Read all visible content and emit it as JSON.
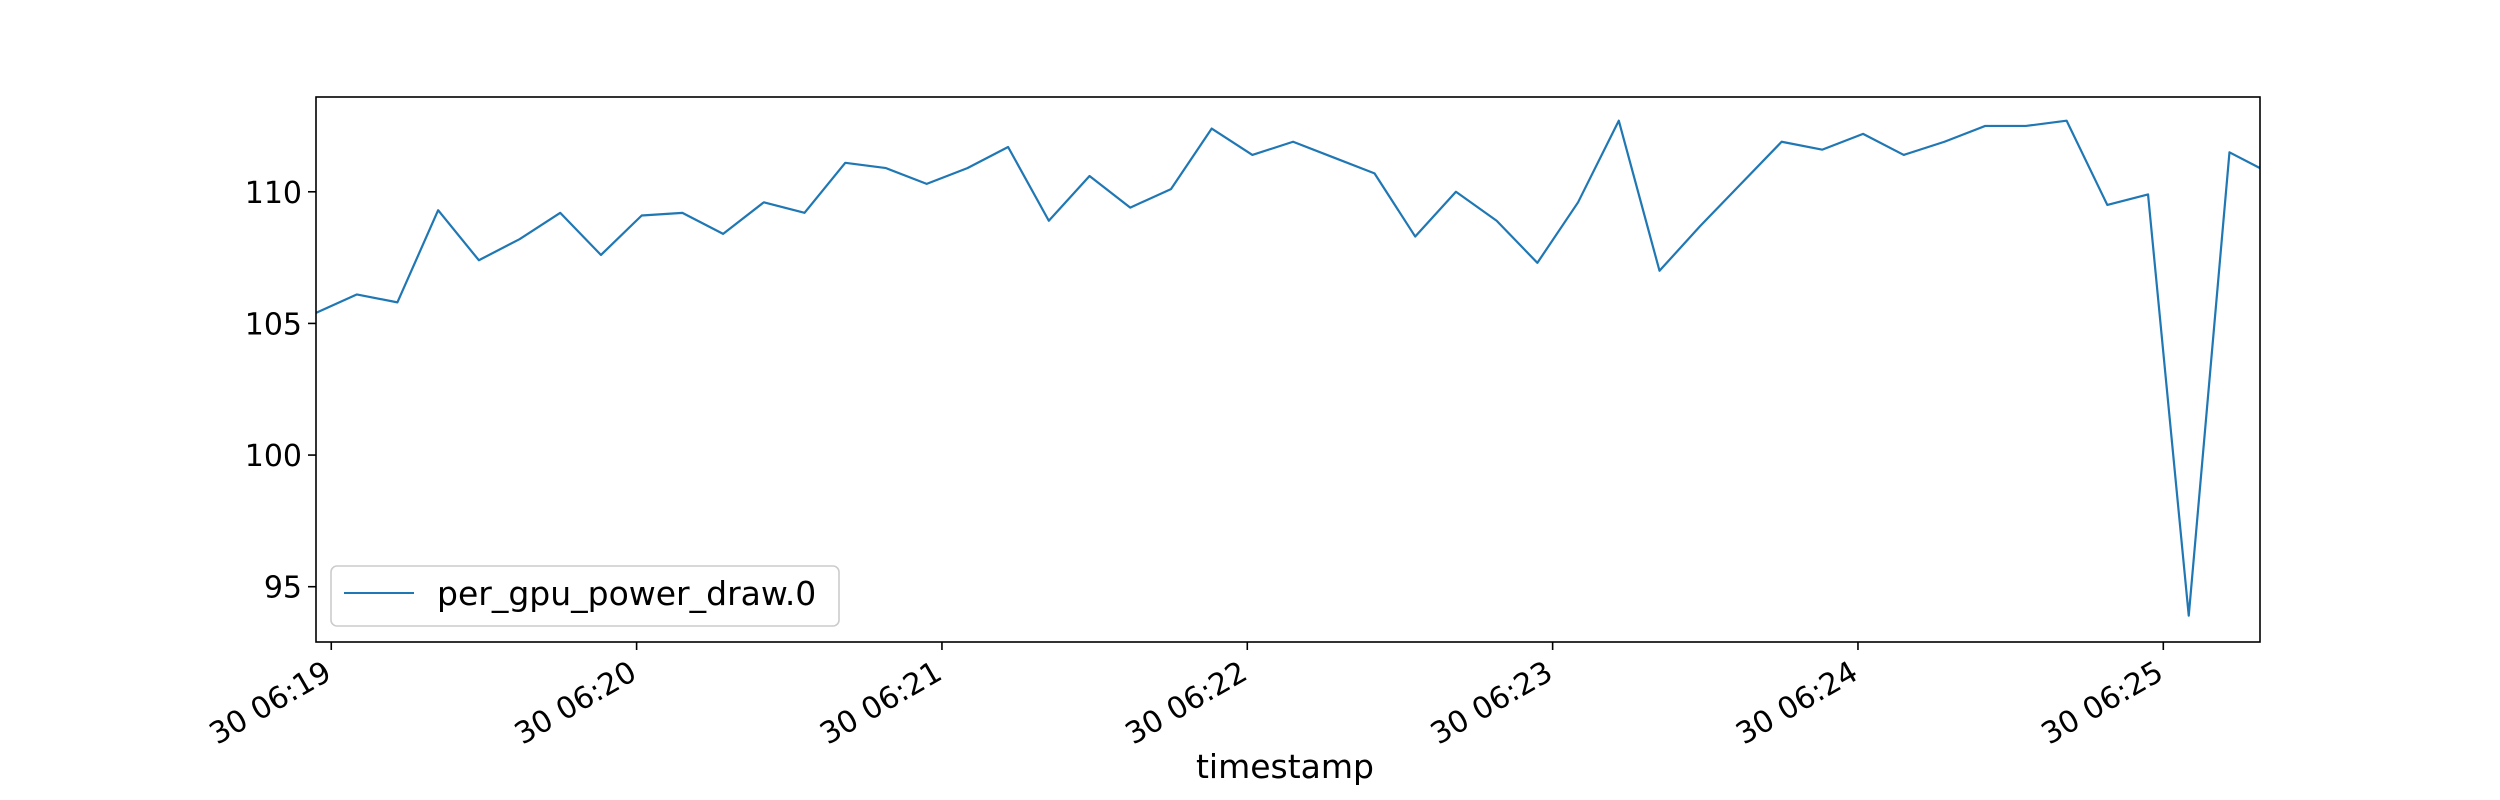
{
  "chart_data": {
    "type": "line",
    "title": "",
    "xlabel": "timestamp",
    "ylabel": "",
    "grid": false,
    "legend_position": "lower-left",
    "line_color": "#1f77b4",
    "x_ticks": [
      {
        "value": "2000-01-30T06:19:00",
        "label": "30 06:19"
      },
      {
        "value": "2000-01-30T06:20:00",
        "label": "30 06:20"
      },
      {
        "value": "2000-01-30T06:21:00",
        "label": "30 06:21"
      },
      {
        "value": "2000-01-30T06:22:00",
        "label": "30 06:22"
      },
      {
        "value": "2000-01-30T06:23:00",
        "label": "30 06:23"
      },
      {
        "value": "2000-01-30T06:24:00",
        "label": "30 06:24"
      },
      {
        "value": "2000-01-30T06:25:00",
        "label": "30 06:25"
      }
    ],
    "y_ticks": [
      95,
      100,
      105,
      110
    ],
    "xlim": [
      "2000-01-30T06:18:57",
      "2000-01-30T06:25:19"
    ],
    "ylim": [
      92.9,
      113.6
    ],
    "series": [
      {
        "name": "per_gpu_power_draw.0",
        "x": [
          "2000-01-30T06:18:57",
          "2000-01-30T06:19:05",
          "2000-01-30T06:19:13",
          "2000-01-30T06:19:21",
          "2000-01-30T06:19:29",
          "2000-01-30T06:19:37",
          "2000-01-30T06:19:45",
          "2000-01-30T06:19:53",
          "2000-01-30T06:20:01",
          "2000-01-30T06:20:09",
          "2000-01-30T06:20:17",
          "2000-01-30T06:20:25",
          "2000-01-30T06:20:33",
          "2000-01-30T06:20:41",
          "2000-01-30T06:20:49",
          "2000-01-30T06:20:57",
          "2000-01-30T06:21:05",
          "2000-01-30T06:21:13",
          "2000-01-30T06:21:21",
          "2000-01-30T06:21:29",
          "2000-01-30T06:21:37",
          "2000-01-30T06:21:45",
          "2000-01-30T06:21:53",
          "2000-01-30T06:22:01",
          "2000-01-30T06:22:09",
          "2000-01-30T06:22:17",
          "2000-01-30T06:22:25",
          "2000-01-30T06:22:33",
          "2000-01-30T06:22:41",
          "2000-01-30T06:22:49",
          "2000-01-30T06:22:57",
          "2000-01-30T06:23:05",
          "2000-01-30T06:23:13",
          "2000-01-30T06:23:21",
          "2000-01-30T06:23:29",
          "2000-01-30T06:23:37",
          "2000-01-30T06:23:45",
          "2000-01-30T06:23:53",
          "2000-01-30T06:24:01",
          "2000-01-30T06:24:09",
          "2000-01-30T06:24:17",
          "2000-01-30T06:24:25",
          "2000-01-30T06:24:33",
          "2000-01-30T06:24:41",
          "2000-01-30T06:24:49",
          "2000-01-30T06:24:57",
          "2000-01-30T06:25:05",
          "2000-01-30T06:25:13",
          "2000-01-30T06:25:19"
        ],
        "y": [
          105.4,
          106.1,
          105.8,
          109.3,
          107.4,
          108.2,
          109.2,
          107.6,
          109.1,
          109.2,
          108.4,
          109.6,
          109.2,
          111.1,
          110.9,
          110.3,
          110.9,
          111.7,
          108.9,
          110.6,
          109.4,
          110.1,
          112.4,
          111.4,
          111.9,
          111.3,
          110.7,
          108.3,
          110.0,
          108.9,
          107.3,
          109.6,
          112.7,
          107.0,
          108.7,
          110.3,
          111.9,
          111.6,
          112.2,
          111.4,
          111.9,
          112.5,
          112.5,
          112.7,
          109.5,
          109.9,
          93.9,
          111.5,
          110.9
        ]
      }
    ]
  }
}
